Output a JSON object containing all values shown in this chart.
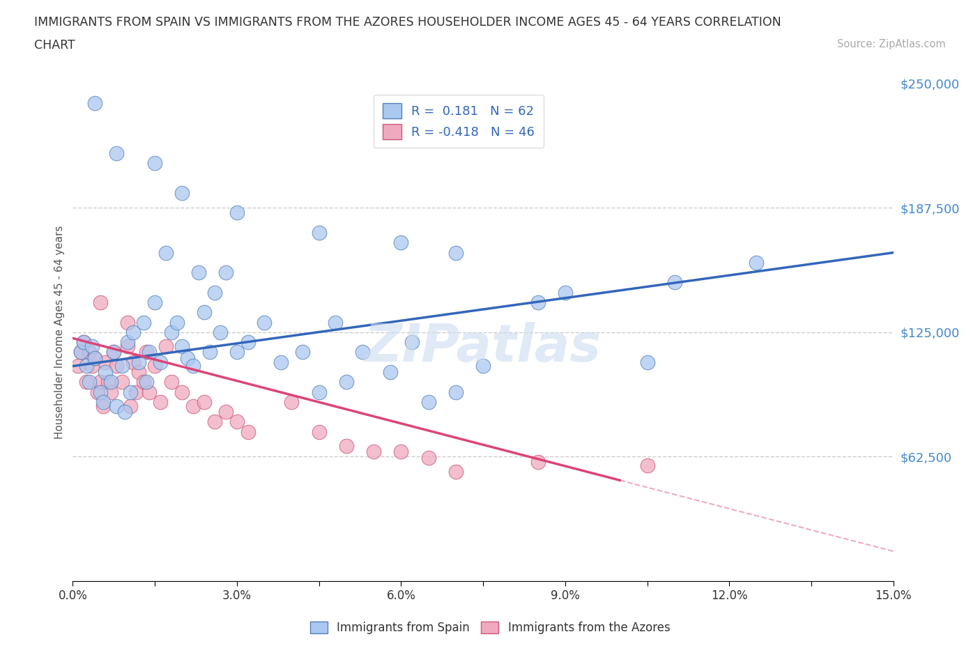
{
  "title_line1": "IMMIGRANTS FROM SPAIN VS IMMIGRANTS FROM THE AZORES HOUSEHOLDER INCOME AGES 45 - 64 YEARS CORRELATION",
  "title_line2": "CHART",
  "source": "Source: ZipAtlas.com",
  "ylabel": "Householder Income Ages 45 - 64 years",
  "xlim": [
    0.0,
    15.0
  ],
  "ylim": [
    0,
    250000
  ],
  "yticks": [
    0,
    62500,
    125000,
    187500,
    250000
  ],
  "ytick_labels": [
    "",
    "$62,500",
    "$125,000",
    "$187,500",
    "$250,000"
  ],
  "xticks": [
    0.0,
    1.5,
    3.0,
    4.5,
    6.0,
    7.5,
    9.0,
    10.5,
    12.0,
    13.5,
    15.0
  ],
  "xtick_labels": [
    "0.0%",
    "",
    "3.0%",
    "",
    "6.0%",
    "",
    "9.0%",
    "",
    "12.0%",
    "",
    "15.0%"
  ],
  "spain_color": "#aac8f0",
  "spain_edge_color": "#5580bb",
  "azores_color": "#f0aac0",
  "azores_edge_color": "#cc5577",
  "spain_line_color": "#3366bb",
  "azores_line_color": "#dd4477",
  "trend_dashed_color": "#f0aac0",
  "R_spain": 0.181,
  "N_spain": 62,
  "R_azores": -0.418,
  "N_azores": 46,
  "legend_label_spain": "Immigrants from Spain",
  "legend_label_azores": "Immigrants from the Azores",
  "watermark": "ZIPatlas",
  "spain_x": [
    0.15,
    0.2,
    0.25,
    0.3,
    0.35,
    0.4,
    0.5,
    0.55,
    0.6,
    0.7,
    0.75,
    0.8,
    0.9,
    0.95,
    1.0,
    1.05,
    1.1,
    1.2,
    1.3,
    1.35,
    1.4,
    1.5,
    1.6,
    1.7,
    1.8,
    1.9,
    2.0,
    2.1,
    2.2,
    2.3,
    2.4,
    2.5,
    2.6,
    2.7,
    2.8,
    3.0,
    3.2,
    3.5,
    3.8,
    4.2,
    4.5,
    4.8,
    5.0,
    5.3,
    5.8,
    6.2,
    6.5,
    7.0,
    7.5,
    8.5,
    10.5,
    11.0,
    0.4,
    0.8,
    1.5,
    2.0,
    3.0,
    4.5,
    6.0,
    7.0,
    9.0,
    12.5
  ],
  "spain_y": [
    115000,
    120000,
    108000,
    100000,
    118000,
    112000,
    95000,
    90000,
    105000,
    100000,
    115000,
    88000,
    108000,
    85000,
    120000,
    95000,
    125000,
    110000,
    130000,
    100000,
    115000,
    140000,
    110000,
    165000,
    125000,
    130000,
    118000,
    112000,
    108000,
    155000,
    135000,
    115000,
    145000,
    125000,
    155000,
    115000,
    120000,
    130000,
    110000,
    115000,
    95000,
    130000,
    100000,
    115000,
    105000,
    120000,
    90000,
    95000,
    108000,
    140000,
    110000,
    150000,
    240000,
    215000,
    210000,
    195000,
    185000,
    175000,
    170000,
    165000,
    145000,
    160000
  ],
  "azores_x": [
    0.1,
    0.15,
    0.2,
    0.25,
    0.3,
    0.35,
    0.4,
    0.45,
    0.5,
    0.55,
    0.6,
    0.65,
    0.7,
    0.75,
    0.8,
    0.9,
    1.0,
    1.05,
    1.1,
    1.15,
    1.2,
    1.3,
    1.35,
    1.4,
    1.5,
    1.6,
    1.7,
    1.8,
    2.0,
    2.2,
    2.4,
    2.6,
    2.8,
    3.0,
    3.2,
    4.0,
    4.5,
    5.0,
    5.5,
    6.0,
    6.5,
    7.0,
    8.5,
    10.5,
    0.5,
    1.0
  ],
  "azores_y": [
    108000,
    115000,
    120000,
    100000,
    115000,
    108000,
    112000,
    95000,
    100000,
    88000,
    110000,
    100000,
    95000,
    115000,
    108000,
    100000,
    118000,
    88000,
    110000,
    95000,
    105000,
    100000,
    115000,
    95000,
    108000,
    90000,
    118000,
    100000,
    95000,
    88000,
    90000,
    80000,
    85000,
    80000,
    75000,
    90000,
    75000,
    68000,
    65000,
    65000,
    62000,
    55000,
    60000,
    58000,
    140000,
    130000
  ]
}
